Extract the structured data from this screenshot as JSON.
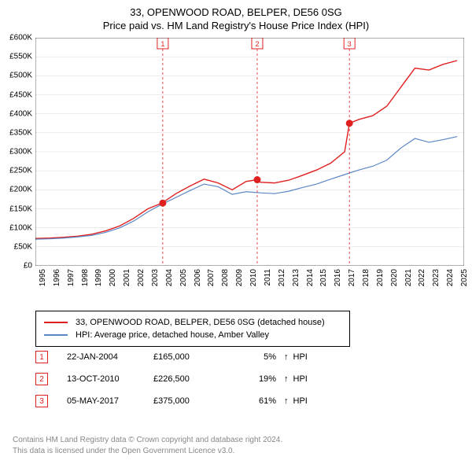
{
  "title": {
    "line1": "33, OPENWOOD ROAD, BELPER, DE56 0SG",
    "line2": "Price paid vs. HM Land Registry's House Price Index (HPI)"
  },
  "chart": {
    "type": "line",
    "background_color": "#ffffff",
    "grid_color": "#d8d8d8",
    "x_years": [
      1995,
      1996,
      1997,
      1998,
      1999,
      2000,
      2001,
      2002,
      2003,
      2004,
      2005,
      2006,
      2007,
      2008,
      2009,
      2010,
      2011,
      2012,
      2013,
      2014,
      2015,
      2016,
      2017,
      2018,
      2019,
      2020,
      2021,
      2022,
      2023,
      2024,
      2025
    ],
    "xlim": [
      1995,
      2025.5
    ],
    "ylim": [
      0,
      600000
    ],
    "ytick_step": 50000,
    "y_labels": [
      "£0",
      "£50K",
      "£100K",
      "£150K",
      "£200K",
      "£250K",
      "£300K",
      "£350K",
      "£400K",
      "£450K",
      "£500K",
      "£550K",
      "£600K"
    ],
    "series": [
      {
        "name": "33, OPENWOOD ROAD, BELPER, DE56 0SG (detached house)",
        "color": "#e02020",
        "line_width": 1.4,
        "points": [
          [
            1995,
            72000
          ],
          [
            1996,
            73000
          ],
          [
            1997,
            75000
          ],
          [
            1998,
            78000
          ],
          [
            1999,
            83000
          ],
          [
            2000,
            92000
          ],
          [
            2001,
            105000
          ],
          [
            2002,
            125000
          ],
          [
            2003,
            150000
          ],
          [
            2004,
            165000
          ],
          [
            2005,
            190000
          ],
          [
            2006,
            210000
          ],
          [
            2007,
            228000
          ],
          [
            2008,
            218000
          ],
          [
            2009,
            200000
          ],
          [
            2010,
            222000
          ],
          [
            2010.78,
            226500
          ],
          [
            2011,
            220000
          ],
          [
            2012,
            218000
          ],
          [
            2013,
            225000
          ],
          [
            2014,
            238000
          ],
          [
            2015,
            252000
          ],
          [
            2016,
            270000
          ],
          [
            2017,
            300000
          ],
          [
            2017.34,
            375000
          ],
          [
            2018,
            385000
          ],
          [
            2019,
            395000
          ],
          [
            2020,
            420000
          ],
          [
            2021,
            470000
          ],
          [
            2022,
            520000
          ],
          [
            2023,
            515000
          ],
          [
            2024,
            530000
          ],
          [
            2025,
            540000
          ]
        ]
      },
      {
        "name": "HPI: Average price, detached house, Amber Valley",
        "color": "#5b87c7",
        "line_width": 1.2,
        "points": [
          [
            1995,
            70000
          ],
          [
            1996,
            71000
          ],
          [
            1997,
            73000
          ],
          [
            1998,
            76000
          ],
          [
            1999,
            80000
          ],
          [
            2000,
            88000
          ],
          [
            2001,
            100000
          ],
          [
            2002,
            118000
          ],
          [
            2003,
            142000
          ],
          [
            2004,
            162000
          ],
          [
            2005,
            180000
          ],
          [
            2006,
            198000
          ],
          [
            2007,
            215000
          ],
          [
            2008,
            208000
          ],
          [
            2009,
            188000
          ],
          [
            2010,
            195000
          ],
          [
            2011,
            192000
          ],
          [
            2012,
            190000
          ],
          [
            2013,
            196000
          ],
          [
            2014,
            206000
          ],
          [
            2015,
            215000
          ],
          [
            2016,
            228000
          ],
          [
            2017,
            240000
          ],
          [
            2018,
            252000
          ],
          [
            2019,
            262000
          ],
          [
            2020,
            278000
          ],
          [
            2021,
            310000
          ],
          [
            2022,
            335000
          ],
          [
            2023,
            325000
          ],
          [
            2024,
            332000
          ],
          [
            2025,
            340000
          ]
        ]
      }
    ],
    "sales": [
      {
        "num": "1",
        "year_frac": 2004.06,
        "date": "22-JAN-2004",
        "price": "£165,000",
        "price_val": 165000,
        "diff": "5%",
        "arrow": "↑",
        "color": "#e02020"
      },
      {
        "num": "2",
        "year_frac": 2010.78,
        "date": "13-OCT-2010",
        "price": "£226,500",
        "price_val": 226500,
        "diff": "19%",
        "arrow": "↑",
        "color": "#e02020"
      },
      {
        "num": "3",
        "year_frac": 2017.34,
        "date": "05-MAY-2017",
        "price": "£375,000",
        "price_val": 375000,
        "diff": "61%",
        "arrow": "↑",
        "color": "#e02020"
      }
    ],
    "sale_dot_radius": 4.5,
    "hpi_suffix": "HPI",
    "axis_fontsize": 10,
    "title_fontsize": 13
  },
  "footer": {
    "line1": "Contains HM Land Registry data © Crown copyright and database right 2024.",
    "line2": "This data is licensed under the Open Government Licence v3.0."
  }
}
